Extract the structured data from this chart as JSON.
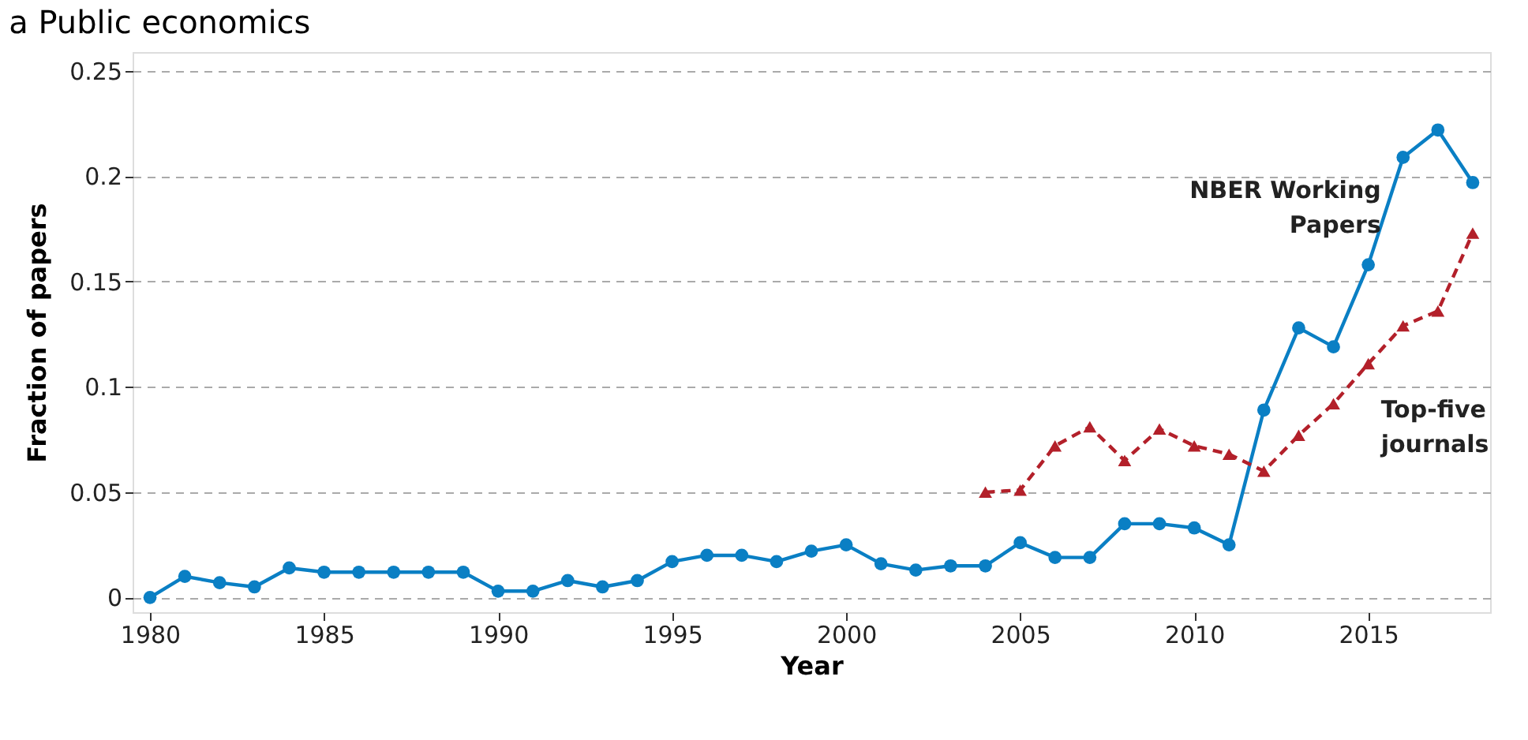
{
  "chart_data": {
    "type": "line",
    "title": "a  Public economics",
    "xlabel": "Year",
    "ylabel": "Fraction of papers",
    "x": [
      1980,
      1981,
      1982,
      1983,
      1984,
      1985,
      1986,
      1987,
      1988,
      1989,
      1990,
      1991,
      1992,
      1993,
      1994,
      1995,
      1996,
      1997,
      1998,
      1999,
      2000,
      2001,
      2002,
      2003,
      2004,
      2005,
      2006,
      2007,
      2008,
      2009,
      2010,
      2011,
      2012,
      2013,
      2014,
      2015,
      2016,
      2017,
      2018
    ],
    "series": [
      {
        "name": "NBER Working Papers",
        "color": "#0a7fc4",
        "marker": "circle",
        "line_style": "solid",
        "values": [
          0,
          0.01,
          0.007,
          0.005,
          0.014,
          0.012,
          0.012,
          0.012,
          0.012,
          0.012,
          0.003,
          0.003,
          0.008,
          0.005,
          0.008,
          0.017,
          0.02,
          0.02,
          0.017,
          0.022,
          0.025,
          0.016,
          0.013,
          0.015,
          0.015,
          0.026,
          0.019,
          0.019,
          0.035,
          0.035,
          0.033,
          0.025,
          0.089,
          0.128,
          0.119,
          0.158,
          0.209,
          0.222,
          0.197
        ]
      },
      {
        "name": "Top-five journals",
        "color": "#b3202a",
        "marker": "triangle",
        "line_style": "dashed",
        "x": [
          2004,
          2005,
          2006,
          2007,
          2008,
          2009,
          2010,
          2011,
          2012,
          2013,
          2014,
          2015,
          2016,
          2017,
          2018
        ],
        "values": [
          0.05,
          0.051,
          0.072,
          0.081,
          0.065,
          0.08,
          0.072,
          0.068,
          0.06,
          0.077,
          0.092,
          0.111,
          0.129,
          0.136,
          0.173
        ]
      }
    ],
    "xlim": [
      1979.5,
      2018.5
    ],
    "xticks": [
      1980,
      1985,
      1990,
      1995,
      2000,
      2005,
      2010,
      2015
    ],
    "ylim": [
      -0.007,
      0.259
    ],
    "yticks": [
      0,
      0.05,
      0.1,
      0.15,
      0.2,
      0.25
    ],
    "grid": "y"
  }
}
